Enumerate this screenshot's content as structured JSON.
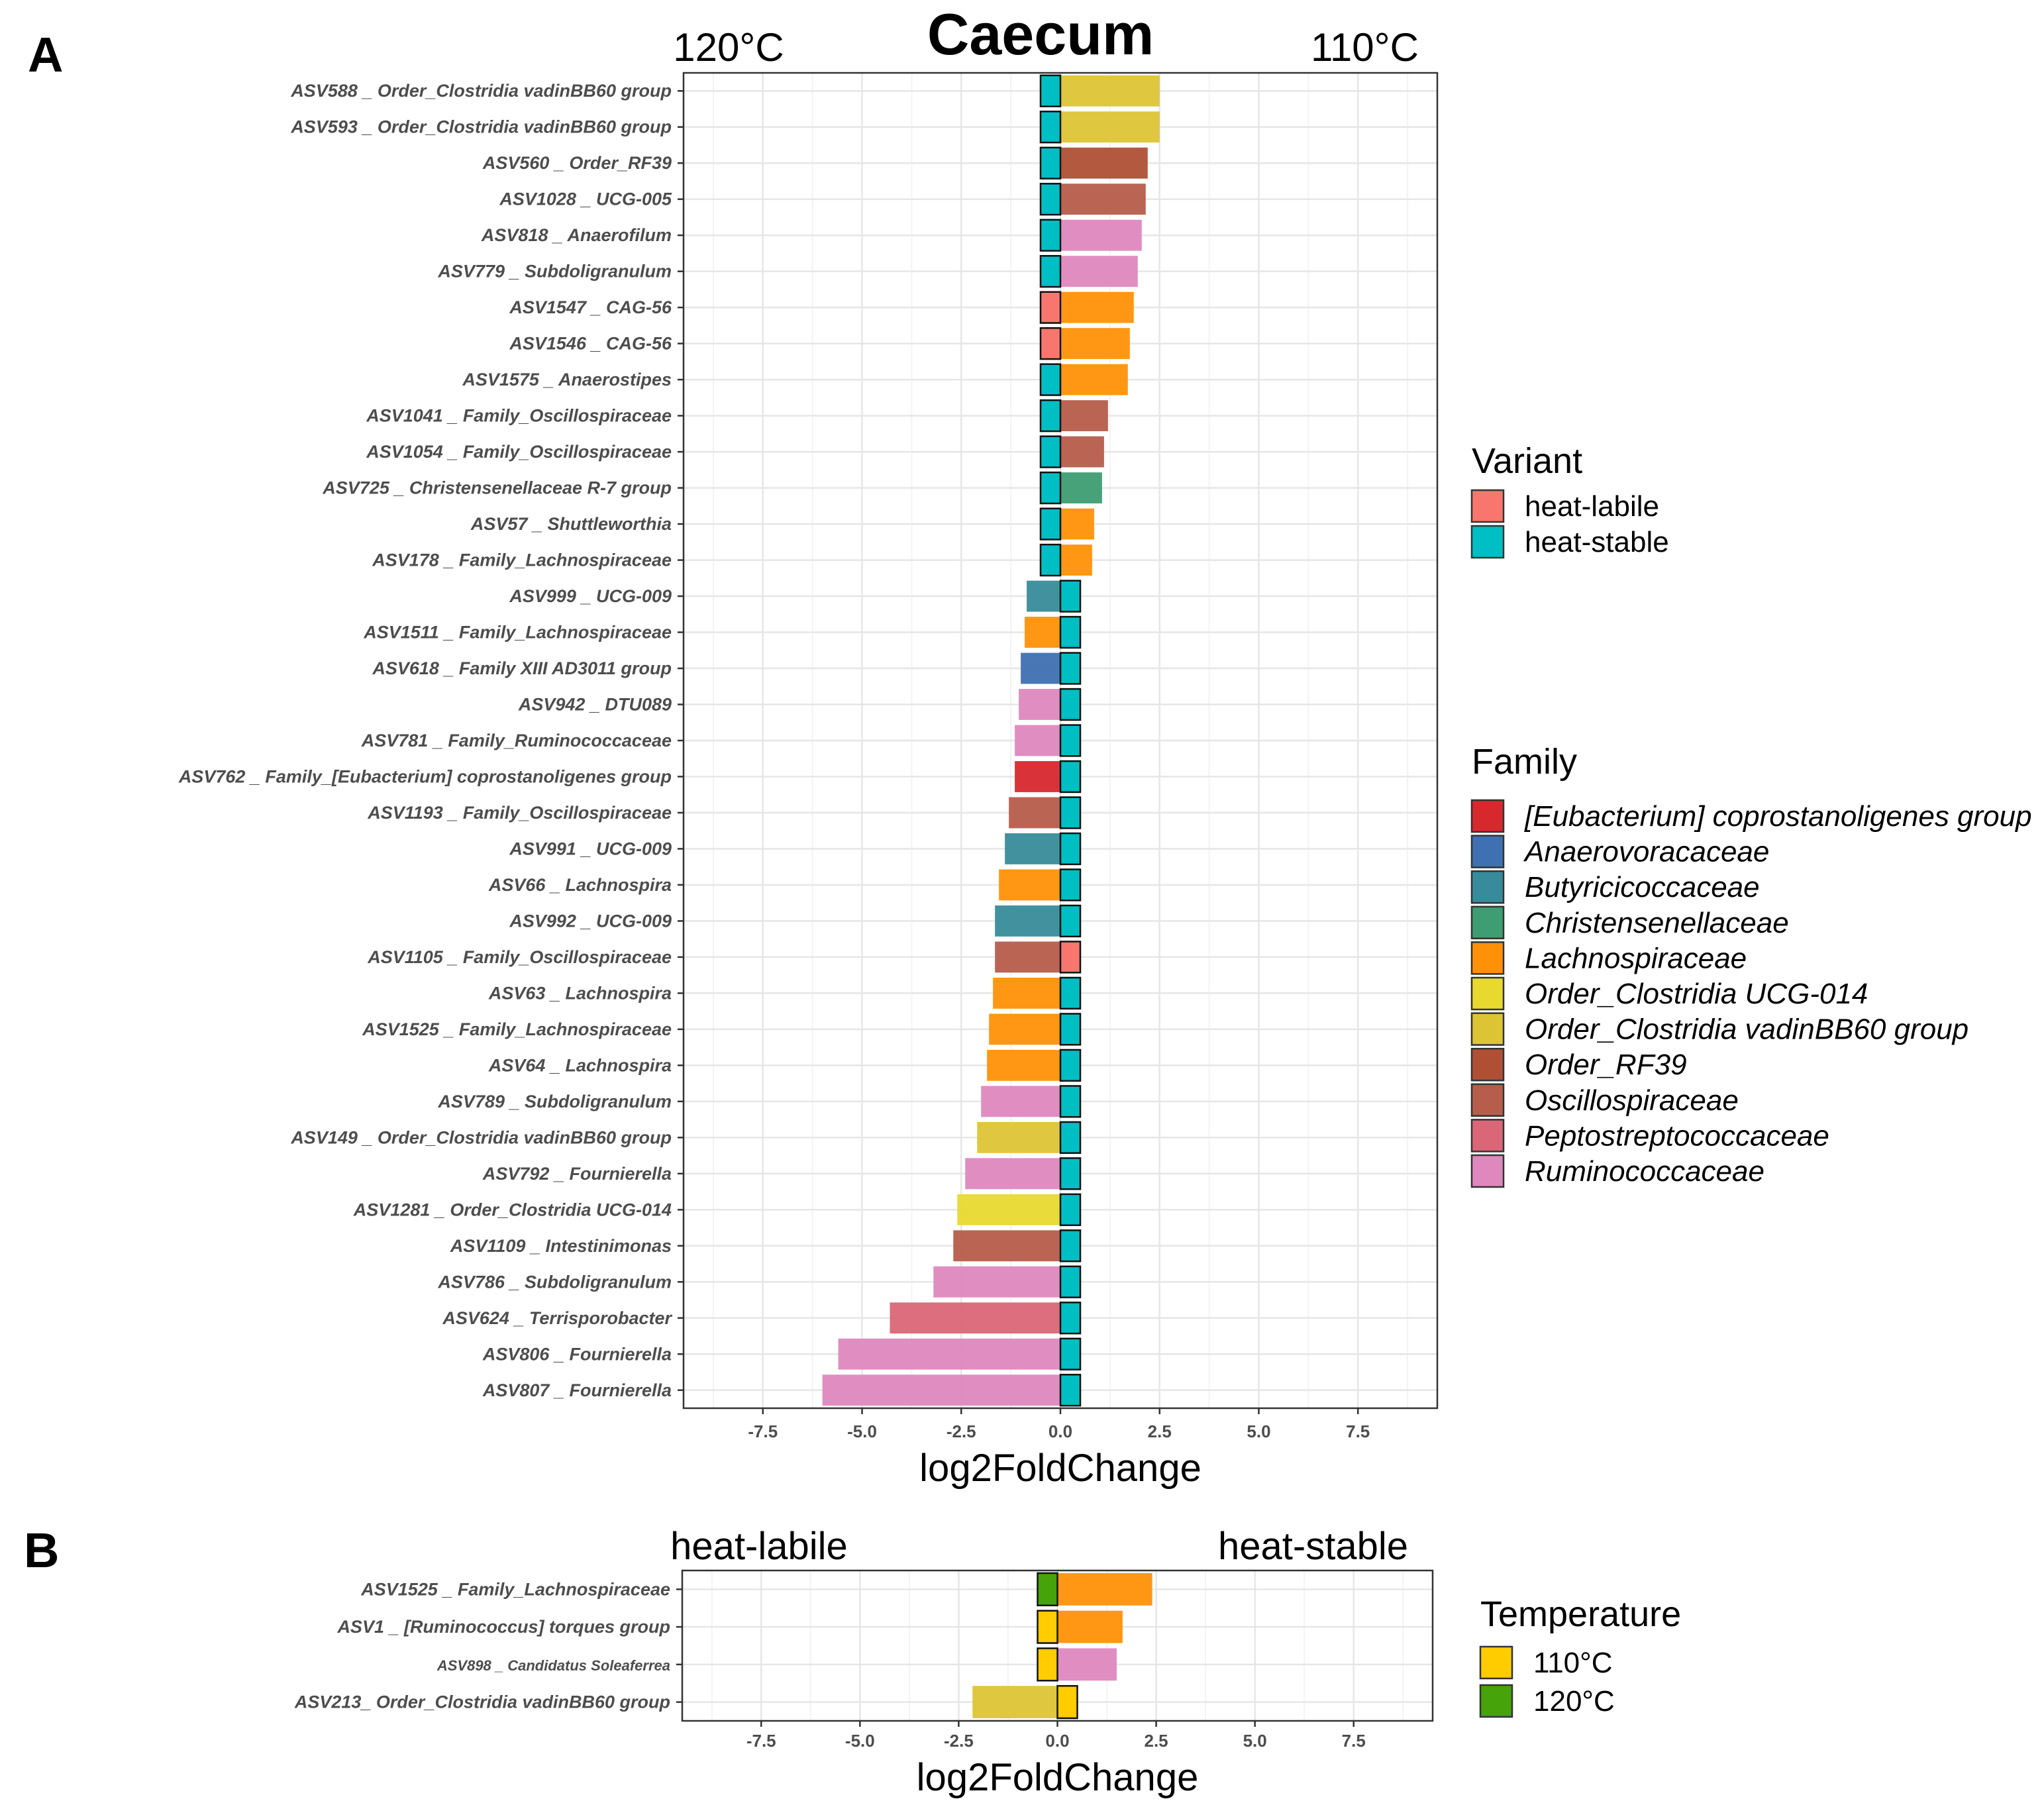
{
  "colors": {
    "heat-labile": "#F8766D",
    "heat-stable": "#00BFC4",
    "[Eubacterium] coprostanoligenes group": "#D7282E",
    "Anaerovoracaceae": "#3F70B2",
    "Butyricicoccaceae": "#388B9A",
    "Christensenellaceae": "#3E9D72",
    "Lachnospiraceae": "#FF9108",
    "Order_Clostridia UCG-014": "#E8D92E",
    "Order_Clostridia vadinBB60 group": "#DDC435",
    "Order_RF39": "#AF5035",
    "Oscillospiraceae": "#B65D4B",
    "Peptostreptococcaceae": "#DA6677",
    "Ruminococcaceae": "#DE88BE",
    "110°C": "#FFCC00",
    "120°C": "#46A30A"
  },
  "chart_data": [
    {
      "panel": "A",
      "type": "bar",
      "orientation": "horizontal",
      "title": "Caecum",
      "left_label": "120°C",
      "right_label": "110°C",
      "xlabel": "log2FoldChange",
      "ylabel": "",
      "xlim": [
        -9.5,
        9.5
      ],
      "xticks": [
        -7.5,
        -5.0,
        -2.5,
        0.0,
        2.5,
        5.0,
        7.5
      ],
      "xtick_labels": [
        "-7.5",
        "-5.0",
        "-2.5",
        "0.0",
        "2.5",
        "5.0",
        "7.5"
      ],
      "grid": true,
      "marker_fill_legend": "Variant",
      "fill_legend": "Family",
      "categories": [
        "ASV588 _ Order_Clostridia vadinBB60 group",
        "ASV593 _ Order_Clostridia vadinBB60 group",
        "ASV560 _ Order_RF39",
        "ASV1028 _ UCG-005",
        "ASV818 _ Anaerofilum",
        "ASV779 _ Subdoligranulum",
        "ASV1547 _ CAG-56",
        "ASV1546 _ CAG-56",
        "ASV1575 _ Anaerostipes",
        "ASV1041 _ Family_Oscillospiraceae",
        "ASV1054 _ Family_Oscillospiraceae",
        "ASV725 _ Christensenellaceae R-7 group",
        "ASV57 _ Shuttleworthia",
        "ASV178 _ Family_Lachnospiraceae",
        "ASV999 _ UCG-009",
        "ASV1511 _ Family_Lachnospiraceae",
        "ASV618 _ Family XIII AD3011 group",
        "ASV942 _ DTU089",
        "ASV781 _ Family_Ruminococcaceae",
        "ASV762 _ Family_[Eubacterium] coprostanoligenes group",
        "ASV1193 _ Family_Oscillospiraceae",
        "ASV991 _ UCG-009",
        "ASV66 _ Lachnospira",
        "ASV992 _ UCG-009",
        "ASV1105 _ Family_Oscillospiraceae",
        "ASV63 _ Lachnospira",
        "ASV1525 _ Family_Lachnospiraceae",
        "ASV64 _ Lachnospira",
        "ASV789 _ Subdoligranulum",
        "ASV149 _ Order_Clostridia vadinBB60 group",
        "ASV792 _ Fournierella",
        "ASV1281 _ Order_Clostridia UCG-014",
        "ASV1109 _ Intestinimonas",
        "ASV786 _ Subdoligranulum",
        "ASV624 _ Terrisporobacter",
        "ASV806 _ Fournierella",
        "ASV807 _ Fournierella"
      ],
      "values": [
        2.5,
        2.5,
        2.2,
        2.15,
        2.05,
        1.95,
        1.85,
        1.75,
        1.7,
        1.2,
        1.1,
        1.05,
        0.85,
        0.8,
        -0.85,
        -0.9,
        -1.0,
        -1.05,
        -1.15,
        -1.15,
        -1.3,
        -1.4,
        -1.55,
        -1.65,
        -1.65,
        -1.7,
        -1.8,
        -1.85,
        -2.0,
        -2.1,
        -2.4,
        -2.6,
        -2.7,
        -3.2,
        -4.3,
        -5.6,
        -6.0
      ],
      "family": [
        "Order_Clostridia vadinBB60 group",
        "Order_Clostridia vadinBB60 group",
        "Order_RF39",
        "Oscillospiraceae",
        "Ruminococcaceae",
        "Ruminococcaceae",
        "Lachnospiraceae",
        "Lachnospiraceae",
        "Lachnospiraceae",
        "Oscillospiraceae",
        "Oscillospiraceae",
        "Christensenellaceae",
        "Lachnospiraceae",
        "Lachnospiraceae",
        "Butyricicoccaceae",
        "Lachnospiraceae",
        "Anaerovoracaceae",
        "Ruminococcaceae",
        "Ruminococcaceae",
        "[Eubacterium] coprostanoligenes group",
        "Oscillospiraceae",
        "Butyricicoccaceae",
        "Lachnospiraceae",
        "Butyricicoccaceae",
        "Oscillospiraceae",
        "Lachnospiraceae",
        "Lachnospiraceae",
        "Lachnospiraceae",
        "Ruminococcaceae",
        "Order_Clostridia vadinBB60 group",
        "Ruminococcaceae",
        "Order_Clostridia UCG-014",
        "Oscillospiraceae",
        "Ruminococcaceae",
        "Peptostreptococcaceae",
        "Ruminococcaceae",
        "Ruminococcaceae"
      ],
      "marker": [
        "heat-stable",
        "heat-stable",
        "heat-stable",
        "heat-stable",
        "heat-stable",
        "heat-stable",
        "heat-labile",
        "heat-labile",
        "heat-stable",
        "heat-stable",
        "heat-stable",
        "heat-stable",
        "heat-stable",
        "heat-stable",
        "heat-stable",
        "heat-stable",
        "heat-stable",
        "heat-stable",
        "heat-stable",
        "heat-stable",
        "heat-stable",
        "heat-stable",
        "heat-stable",
        "heat-stable",
        "heat-labile",
        "heat-stable",
        "heat-stable",
        "heat-stable",
        "heat-stable",
        "heat-stable",
        "heat-stable",
        "heat-stable",
        "heat-stable",
        "heat-stable",
        "heat-stable",
        "heat-stable",
        "heat-stable"
      ],
      "legends": [
        {
          "title": "Variant",
          "italic": false,
          "entries": [
            "heat-labile",
            "heat-stable"
          ]
        },
        {
          "title": "Family",
          "italic": true,
          "entries": [
            "[Eubacterium] coprostanoligenes group",
            "Anaerovoracaceae",
            "Butyricicoccaceae",
            "Christensenellaceae",
            "Lachnospiraceae",
            "Order_Clostridia UCG-014",
            "Order_Clostridia vadinBB60 group",
            "Order_RF39",
            "Oscillospiraceae",
            "Peptostreptococcaceae",
            "Ruminococcaceae"
          ]
        }
      ]
    },
    {
      "panel": "B",
      "type": "bar",
      "orientation": "horizontal",
      "title": "",
      "left_label": "heat-labile",
      "right_label": "heat-stable",
      "xlabel": "log2FoldChange",
      "ylabel": "",
      "xlim": [
        -9.5,
        9.5
      ],
      "xticks": [
        -7.5,
        -5.0,
        -2.5,
        0.0,
        2.5,
        5.0,
        7.5
      ],
      "xtick_labels": [
        "-7.5",
        "-5.0",
        "-2.5",
        "0.0",
        "2.5",
        "5.0",
        "7.5"
      ],
      "grid": true,
      "categories": [
        "ASV1525 _ Family_Lachnospiraceae",
        "ASV1 _ [Ruminococcus] torques group",
        "ASV898 _ Candidatus Soleaferrea",
        "ASV213_ Order_Clostridia vadinBB60 group"
      ],
      "values": [
        2.4,
        1.65,
        1.5,
        -2.15
      ],
      "family": [
        "Lachnospiraceae",
        "Lachnospiraceae",
        "Ruminococcaceae",
        "Order_Clostridia vadinBB60 group"
      ],
      "marker": [
        "120°C",
        "110°C",
        "110°C",
        "110°C"
      ],
      "legends": [
        {
          "title": "Temperature",
          "italic": false,
          "entries": [
            "110°C",
            "120°C"
          ]
        }
      ]
    }
  ]
}
